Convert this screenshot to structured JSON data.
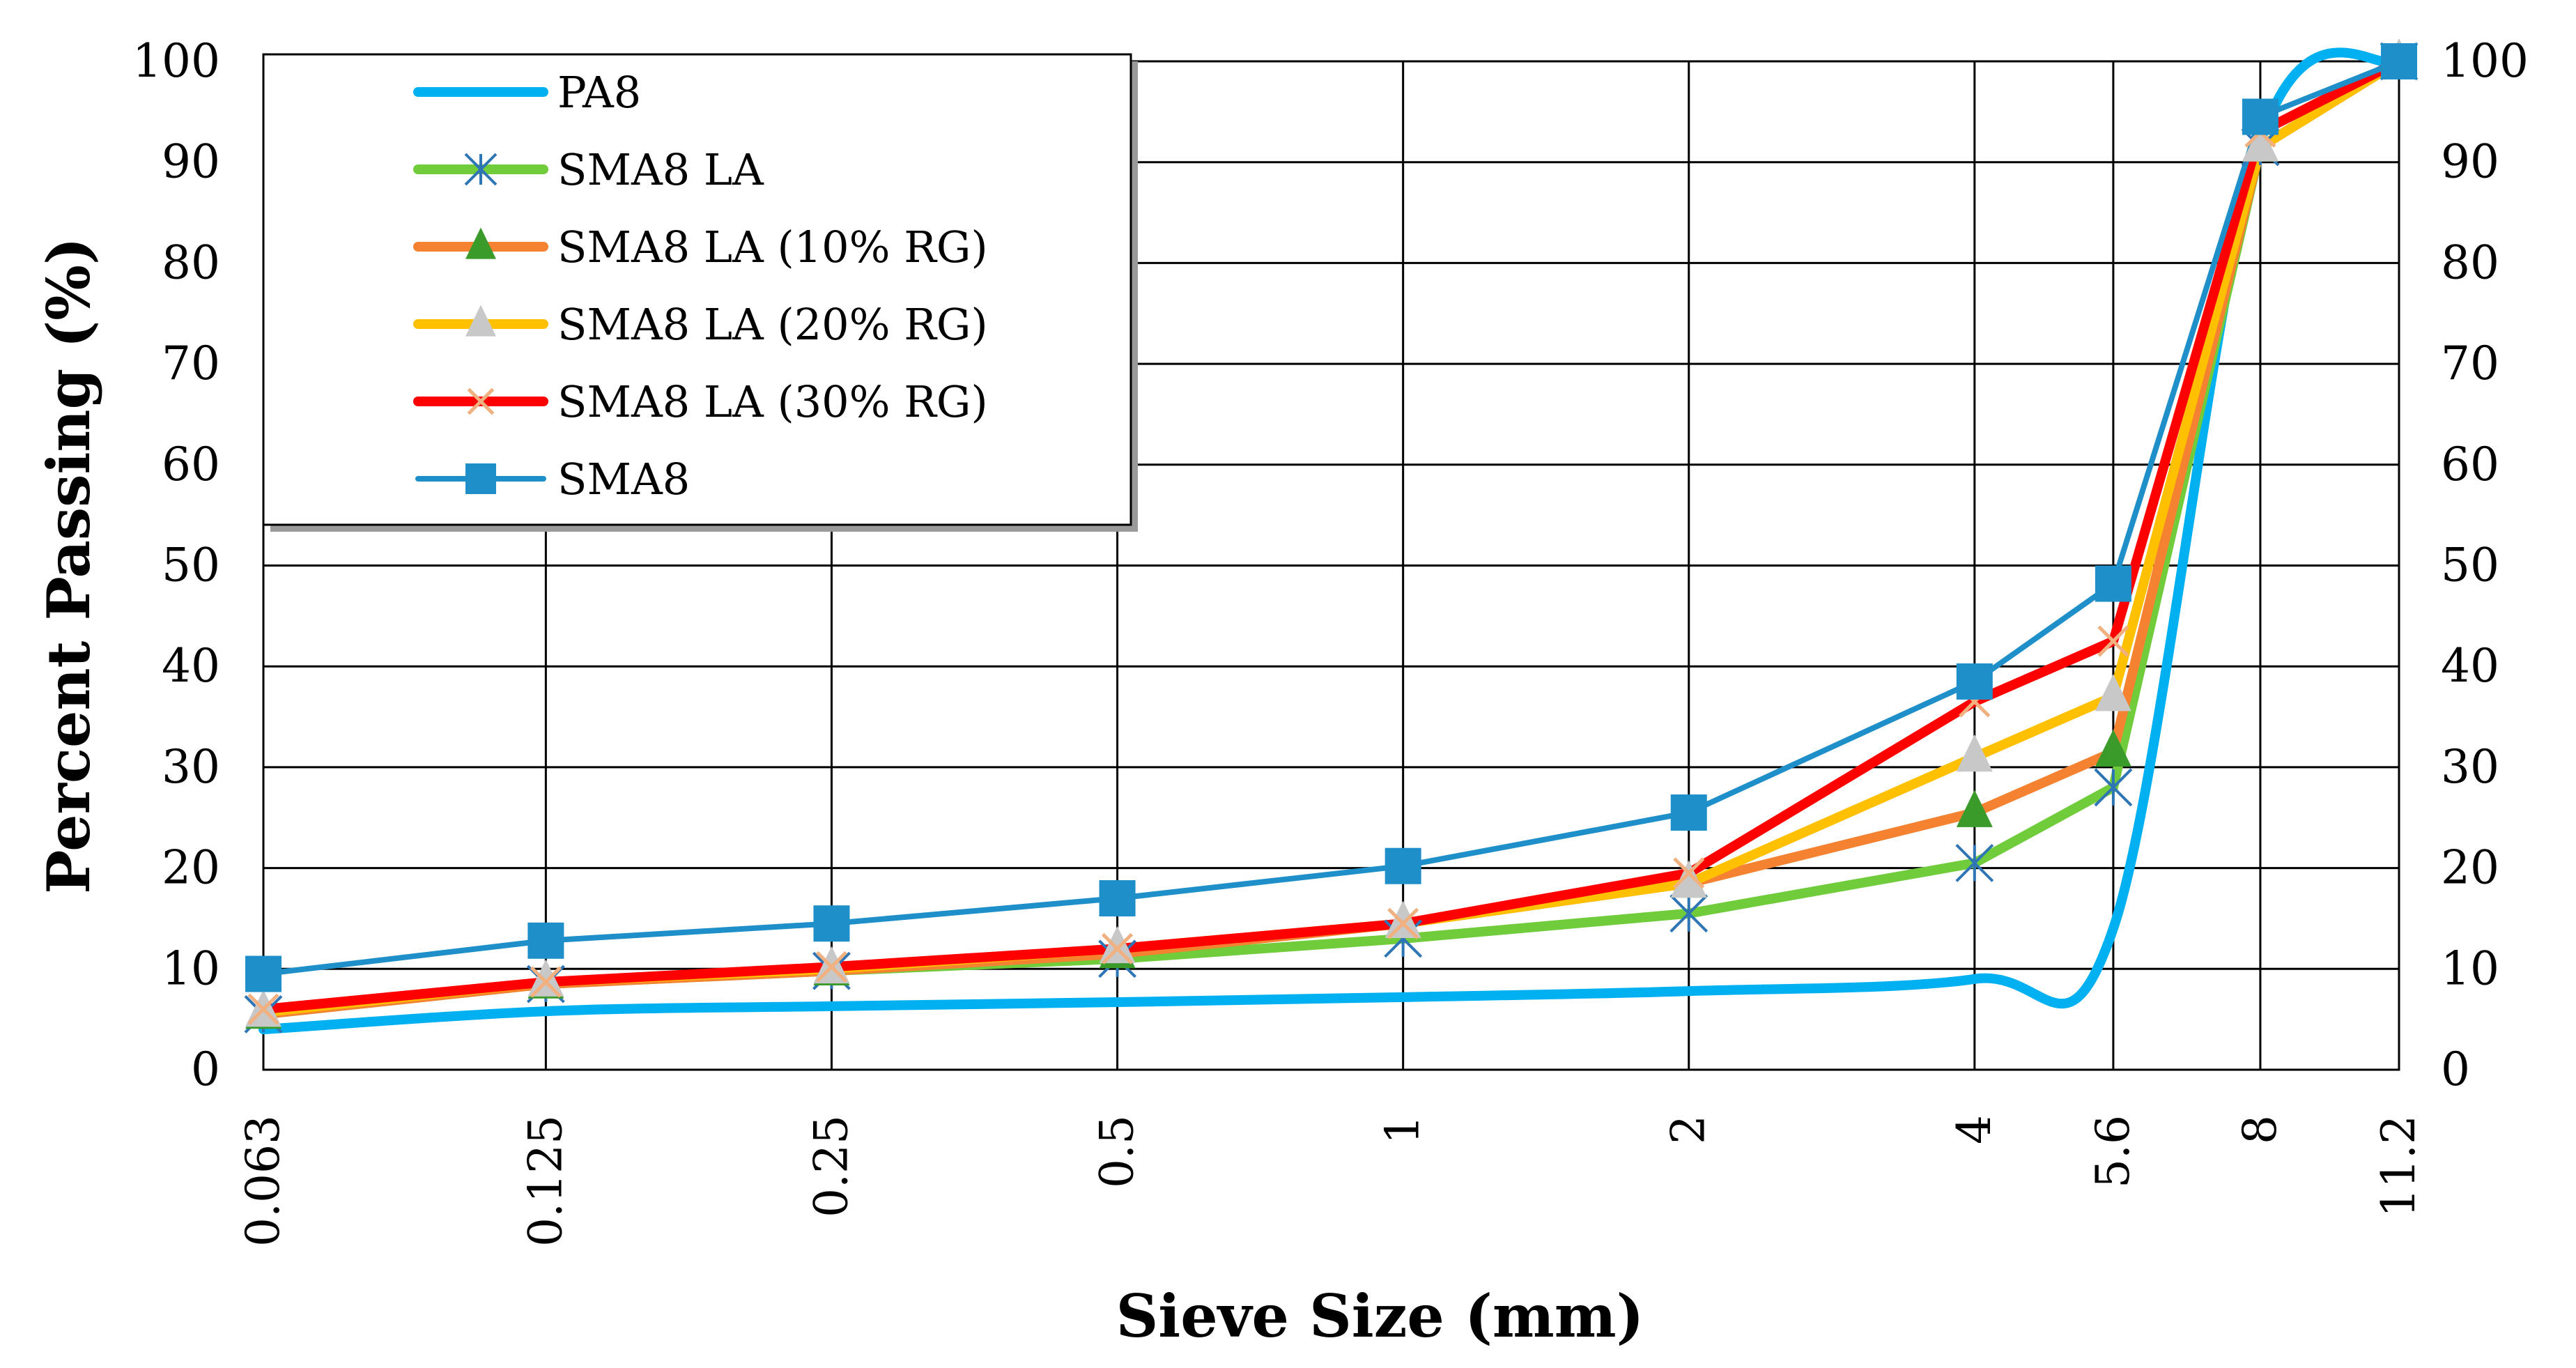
{
  "chart_data": {
    "type": "line",
    "title": "",
    "xlabel": "Sieve Size (mm)",
    "ylabel": "Percent Passing (%)",
    "categories": [
      "0.063",
      "0.125",
      "0.25",
      "0.5",
      "1",
      "2",
      "4",
      "5.6",
      "8",
      "11.2"
    ],
    "x_scale": "log",
    "x_values": [
      0.063,
      0.125,
      0.25,
      0.5,
      1,
      2,
      4,
      5.6,
      8,
      11.2
    ],
    "ylim": [
      0,
      100
    ],
    "yticks": [
      0,
      10,
      20,
      30,
      40,
      50,
      60,
      70,
      80,
      90,
      100
    ],
    "grid": true,
    "secondary_y_axis": true,
    "legend_position": "top-left",
    "series": [
      {
        "name": "PA8",
        "color": "#00b0f0",
        "marker": "none",
        "smooth": true,
        "values": [
          4,
          5.8,
          6.3,
          6.7,
          7.2,
          7.8,
          9,
          14,
          92,
          100
        ]
      },
      {
        "name": "SMA8 LA",
        "color": "#70cc3a",
        "marker": "star",
        "marker_color": "#2e75b6",
        "values": [
          5.5,
          8.5,
          9.8,
          11,
          13,
          15.5,
          20.5,
          28,
          91.5,
          100
        ]
      },
      {
        "name": "SMA8 LA (10% RG)",
        "color": "#f58231",
        "marker": "triangle",
        "marker_color": "#3a9a2a",
        "values": [
          5.5,
          8.5,
          9.8,
          11.5,
          14.5,
          18.5,
          25.5,
          31.5,
          91.5,
          100
        ]
      },
      {
        "name": "SMA8 LA (20% RG)",
        "color": "#ffc000",
        "marker": "triangle",
        "marker_color": "#c8c8c8",
        "values": [
          5.7,
          8.7,
          10,
          12,
          14.5,
          18.5,
          31,
          37,
          91.5,
          100
        ]
      },
      {
        "name": "SMA8 LA (30% RG)",
        "color": "#ff0000",
        "marker": "x",
        "marker_color": "#f0b080",
        "values": [
          6,
          8.7,
          10.2,
          12,
          14.5,
          19.5,
          36.5,
          42.5,
          93,
          100
        ]
      },
      {
        "name": "SMA8",
        "color": "#1f8fca",
        "marker": "square",
        "marker_color": "#1f8fca",
        "values": [
          9.5,
          12.8,
          14.5,
          17,
          20.2,
          25.5,
          38.5,
          48.2,
          94.5,
          100
        ]
      }
    ]
  }
}
